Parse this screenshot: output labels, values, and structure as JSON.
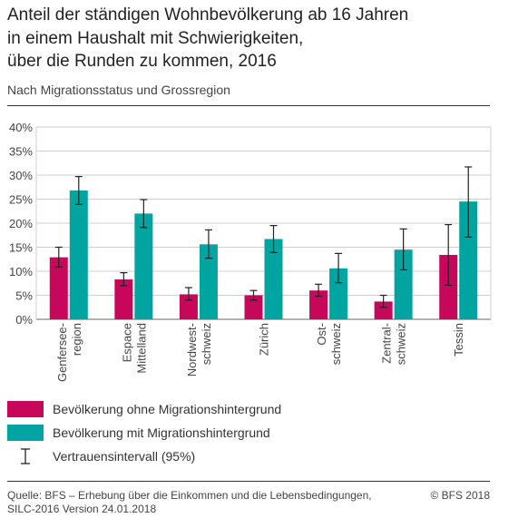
{
  "header": {
    "title_line1": "Anteil der ständigen Wohnbevölkerung ab 16 Jahren",
    "title_line2": "in einem Haushalt mit Schwierigkeiten,",
    "title_line3": "über die Runden zu kommen, 2016",
    "subtitle": "Nach Migrationsstatus und Grossregion"
  },
  "chart_data": {
    "type": "bar",
    "title": "Anteil der ständigen Wohnbevölkerung ab 16 Jahren in einem Haushalt mit Schwierigkeiten, über die Runden zu kommen, 2016",
    "subtitle": "Nach Migrationsstatus und Grossregion",
    "categories": [
      [
        "Genfersee-",
        "region"
      ],
      [
        "Espace",
        "Mittelland"
      ],
      [
        "Nordwest-",
        "schweiz"
      ],
      [
        "Zürich"
      ],
      [
        "Ost-",
        "schweiz"
      ],
      [
        "Zentral-",
        "schweiz"
      ],
      [
        "Tessin"
      ]
    ],
    "series": [
      {
        "name": "Bevölkerung ohne Migrationshintergrund",
        "color": "#c7085a",
        "values": [
          12.9,
          8.3,
          5.2,
          5.0,
          6.0,
          3.7,
          13.4
        ],
        "ci_low": [
          10.9,
          7.0,
          4.0,
          4.0,
          4.8,
          2.5,
          7.1
        ],
        "ci_high": [
          15.0,
          9.7,
          6.6,
          6.0,
          7.3,
          5.0,
          19.7
        ]
      },
      {
        "name": "Bevölkerung mit Migrationshintergrund",
        "color": "#00a5a1",
        "values": [
          26.8,
          22.0,
          15.6,
          16.7,
          10.6,
          14.5,
          24.5
        ],
        "ci_low": [
          23.9,
          19.1,
          12.7,
          13.9,
          7.6,
          10.3,
          17.1
        ],
        "ci_high": [
          29.7,
          24.9,
          18.6,
          19.5,
          13.7,
          18.8,
          31.7
        ]
      }
    ],
    "y_ticks": [
      "0%",
      "5%",
      "10%",
      "15%",
      "20%",
      "25%",
      "30%",
      "35%",
      "40%"
    ],
    "ylim": [
      0,
      40
    ],
    "grid": true,
    "legend_position": "bottom",
    "ci_label": "Vertrauensintervall (95%)"
  },
  "footer": {
    "source_line1": "Quelle: BFS – Erhebung über die Einkommen und die Lebensbedingungen,",
    "source_line2": "SILC-2016 Version 24.01.2018",
    "copyright": "© BFS 2018"
  }
}
